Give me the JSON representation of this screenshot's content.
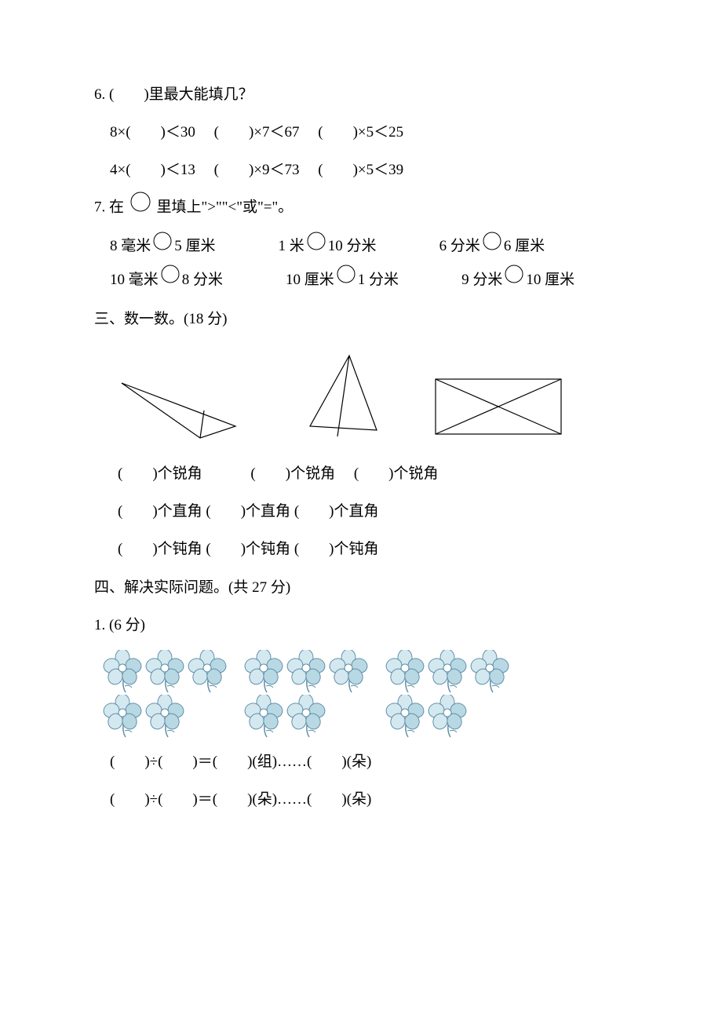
{
  "q6": {
    "title": "6. (　　)里最大能填几？",
    "row1a": "8×(　　)＜30",
    "row1b": "(　　)×7＜67",
    "row1c": "(　　)×5＜25",
    "row2a": "4×(　　)＜13",
    "row2b": "(　　)×9＜73",
    "row2c": "(　　)×5＜39"
  },
  "q7": {
    "title_prefix": "7. 在 ",
    "title_suffix": " 里填上\">\"\"<\"或\"=\"。",
    "r1c1_a": "8 毫米",
    "r1c1_b": "5 厘米",
    "r1c2_a": "1 米",
    "r1c2_b": "10 分米",
    "r1c3_a": "6 分米",
    "r1c3_b": "6 厘米",
    "r2c1_a": "10 毫米",
    "r2c1_b": "8 分米",
    "r2c2_a": "10 厘米",
    "r2c2_b": "1 分米",
    "r2c3_a": "9 分米",
    "r2c3_b": "10 厘米"
  },
  "section3": {
    "title": "三、数一数。(18 分)",
    "rui": "(　　)个锐角",
    "zhi": "(　　)个直角",
    "dun": "(　　)个钝角",
    "shapes": {
      "stroke": "#000000",
      "stroke_width": 1.2,
      "fill": "none",
      "shape1_w": 170,
      "shape1_h": 90,
      "shape2_w": 110,
      "shape2_h": 115,
      "shape3_w": 170,
      "shape3_h": 90
    }
  },
  "section4": {
    "title": "四、解决实际问题。(共 27 分)",
    "q1_title": "1. (6 分)",
    "eq1": "(　　)÷(　　)＝(　　)(组)……(　　)(朵)",
    "eq2": "(　　)÷(　　)＝(　　)(朵)……(　　)(朵)",
    "flowers": {
      "groups": 3,
      "row1_count": 3,
      "row2_count": 2,
      "petal_fill_light": "#d4e8f0",
      "petal_fill_dark": "#b8d8e4",
      "petal_stroke": "#6090a8",
      "stem_stroke": "#6090a8",
      "center_fill": "#ffffff"
    }
  },
  "circle": {
    "stroke": "#000000",
    "stroke_width": 1,
    "radius": 12
  }
}
